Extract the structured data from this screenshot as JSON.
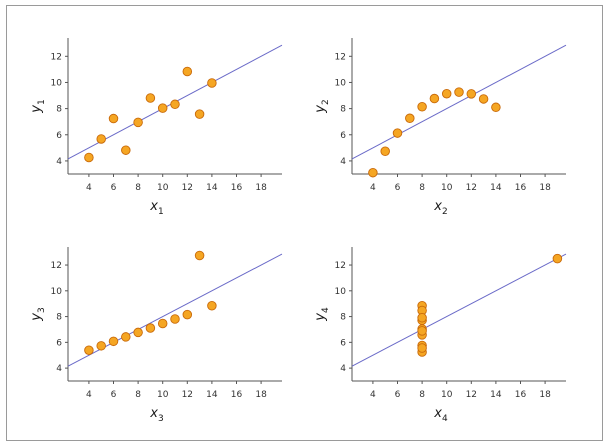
{
  "chart_data": [
    {
      "type": "scatter",
      "xlabel": "x",
      "xlabel_sub": "1",
      "ylabel": "y",
      "ylabel_sub": "1",
      "x_ticks": [
        "4",
        "6",
        "8",
        "10",
        "12",
        "14",
        "16",
        "18"
      ],
      "y_ticks": [
        "4",
        "6",
        "8",
        "10",
        "12"
      ],
      "xlim": [
        2.3,
        19.7
      ],
      "ylim": [
        3,
        13.4
      ],
      "x": [
        10,
        8,
        13,
        9,
        11,
        14,
        6,
        4,
        12,
        7,
        5
      ],
      "y": [
        8.04,
        6.95,
        7.58,
        8.81,
        8.33,
        9.96,
        7.24,
        4.26,
        10.84,
        4.82,
        5.68
      ],
      "regression": {
        "intercept": 3.0,
        "slope": 0.5
      },
      "colors": {
        "point_fill": "#f5a623",
        "point_edge": "#c96a0a",
        "line": "#6a6ac8",
        "axis": "#555555"
      }
    },
    {
      "type": "scatter",
      "xlabel": "x",
      "xlabel_sub": "2",
      "ylabel": "y",
      "ylabel_sub": "2",
      "x_ticks": [
        "4",
        "6",
        "8",
        "10",
        "12",
        "14",
        "16",
        "18"
      ],
      "y_ticks": [
        "4",
        "6",
        "8",
        "10",
        "12"
      ],
      "xlim": [
        2.3,
        19.7
      ],
      "ylim": [
        3,
        13.4
      ],
      "x": [
        10,
        8,
        13,
        9,
        11,
        14,
        6,
        4,
        12,
        7,
        5
      ],
      "y": [
        9.14,
        8.14,
        8.74,
        8.77,
        9.26,
        8.1,
        6.13,
        3.1,
        9.13,
        7.26,
        4.74
      ],
      "regression": {
        "intercept": 3.0,
        "slope": 0.5
      },
      "colors": {
        "point_fill": "#f5a623",
        "point_edge": "#c96a0a",
        "line": "#6a6ac8",
        "axis": "#555555"
      }
    },
    {
      "type": "scatter",
      "xlabel": "x",
      "xlabel_sub": "3",
      "ylabel": "y",
      "ylabel_sub": "3",
      "x_ticks": [
        "4",
        "6",
        "8",
        "10",
        "12",
        "14",
        "16",
        "18"
      ],
      "y_ticks": [
        "4",
        "6",
        "8",
        "10",
        "12"
      ],
      "xlim": [
        2.3,
        19.7
      ],
      "ylim": [
        3,
        13.4
      ],
      "x": [
        10,
        8,
        13,
        9,
        11,
        14,
        6,
        4,
        12,
        7,
        5
      ],
      "y": [
        7.46,
        6.77,
        12.74,
        7.11,
        7.81,
        8.84,
        6.08,
        5.39,
        8.15,
        6.42,
        5.73
      ],
      "regression": {
        "intercept": 3.0,
        "slope": 0.5
      },
      "colors": {
        "point_fill": "#f5a623",
        "point_edge": "#c96a0a",
        "line": "#6a6ac8",
        "axis": "#555555"
      }
    },
    {
      "type": "scatter",
      "xlabel": "x",
      "xlabel_sub": "4",
      "ylabel": "y",
      "ylabel_sub": "4",
      "x_ticks": [
        "4",
        "6",
        "8",
        "10",
        "12",
        "14",
        "16",
        "18"
      ],
      "y_ticks": [
        "4",
        "6",
        "8",
        "10",
        "12"
      ],
      "xlim": [
        2.3,
        19.7
      ],
      "ylim": [
        3,
        13.4
      ],
      "x": [
        8,
        8,
        8,
        8,
        8,
        8,
        8,
        19,
        8,
        8,
        8
      ],
      "y": [
        6.58,
        5.76,
        7.71,
        8.84,
        8.47,
        7.04,
        5.25,
        12.5,
        5.56,
        7.91,
        6.89
      ],
      "regression": {
        "intercept": 3.0,
        "slope": 0.5
      },
      "colors": {
        "point_fill": "#f5a623",
        "point_edge": "#c96a0a",
        "line": "#6a6ac8",
        "axis": "#555555"
      }
    }
  ]
}
